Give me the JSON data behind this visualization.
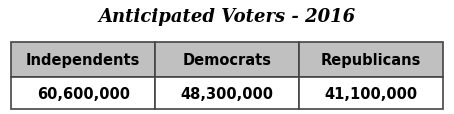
{
  "title": "Anticipated Voters - 2016",
  "columns": [
    "Independents",
    "Democrats",
    "Republicans"
  ],
  "values": [
    "60,600,000",
    "48,300,000",
    "41,100,000"
  ],
  "header_bg": "#C0C0C0",
  "data_bg": "#FFFFFF",
  "border_color": "#444444",
  "title_fontsize": 13,
  "header_fontsize": 10.5,
  "data_fontsize": 10.5,
  "fig_bg": "#FFFFFF",
  "fig_width": 4.54,
  "fig_height": 1.15
}
